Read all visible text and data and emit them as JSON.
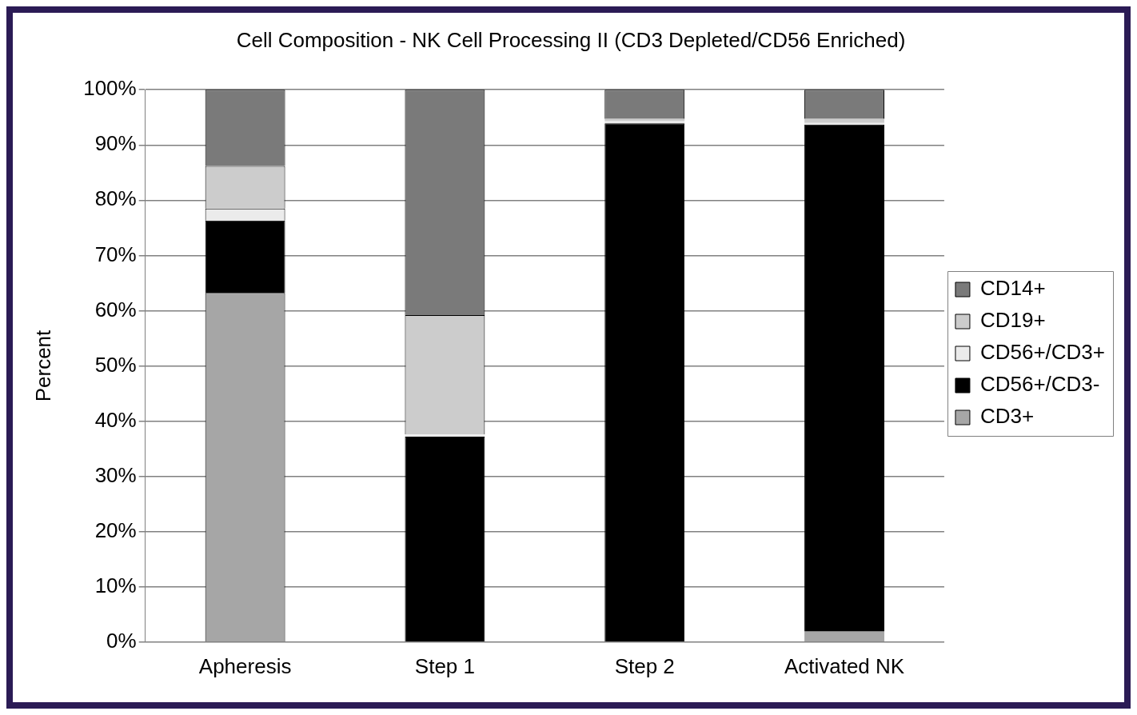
{
  "chart_data": {
    "type": "bar",
    "title": "Cell Composition - NK Cell Processing II (CD3 Depleted/CD56 Enriched)",
    "ylabel": "Percent",
    "categories": [
      "Apheresis",
      "Step 1",
      "Step 2",
      "Activated NK"
    ],
    "stacked": true,
    "series": [
      {
        "name": "CD3+",
        "color": "#a6a6a6",
        "values": [
          63.2,
          0,
          0,
          1.9
        ]
      },
      {
        "name": "CD56+/CD3-",
        "color": "#000000",
        "values": [
          13.1,
          37.2,
          93.9,
          91.8
        ]
      },
      {
        "name": "CD56+/CD3+",
        "color": "#ebebeb",
        "values": [
          2.2,
          0.4,
          0.4,
          0.3
        ]
      },
      {
        "name": "CD19+",
        "color": "#cccccc",
        "values": [
          7.7,
          21.6,
          0.4,
          0.7
        ]
      },
      {
        "name": "CD14+",
        "color": "#7a7a7a",
        "values": [
          13.8,
          40.8,
          5.3,
          5.3
        ]
      }
    ],
    "ylim": [
      0,
      100
    ],
    "yticks": [
      {
        "value": 0,
        "label": "0%"
      },
      {
        "value": 10,
        "label": "10%"
      },
      {
        "value": 20,
        "label": "20%"
      },
      {
        "value": 30,
        "label": "30%"
      },
      {
        "value": 40,
        "label": "40%"
      },
      {
        "value": 50,
        "label": "50%"
      },
      {
        "value": 60,
        "label": "60%"
      },
      {
        "value": 70,
        "label": "70%"
      },
      {
        "value": 80,
        "label": "80%"
      },
      {
        "value": 90,
        "label": "90%"
      },
      {
        "value": 100,
        "label": "100%"
      }
    ],
    "grid": "y",
    "legend": "right"
  }
}
